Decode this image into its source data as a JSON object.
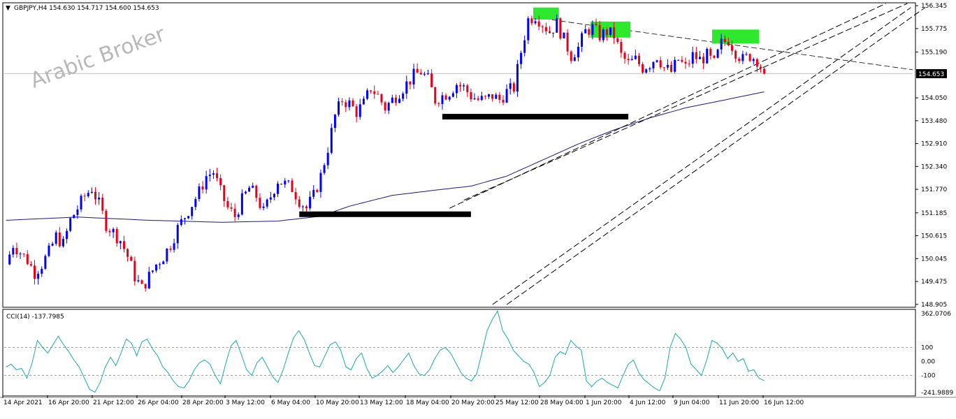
{
  "window": {
    "symbol_line": "GBPJPY,H4  154.630 154.717 154.600 154.653",
    "indicator_line": "CCI(14) -137.7985",
    "watermark": "Arabic Broker",
    "current_price_label": "154.653"
  },
  "colors": {
    "bull_candle": "#0000ff",
    "bear_candle": "#e8001b",
    "moving_average": "#1a1a7a",
    "cci_line": "#1fa8a8",
    "channel_lines": "#000000",
    "support_bars": "#000000",
    "top_markers": "#2ee82e",
    "grid_dotted": "#a0a0a0",
    "price_line": "#c0c0c0"
  },
  "chart_data": [
    {
      "type": "candlestick",
      "title": "GBPJPY,H4",
      "ohlc": {
        "open": 154.63,
        "high": 154.717,
        "low": 154.6,
        "close": 154.653
      },
      "ylim": [
        148.85,
        156.4
      ],
      "y_ticks": [
        "156.345",
        "155.775",
        "155.190",
        "154.653",
        "154.050",
        "153.480",
        "152.910",
        "152.340",
        "151.770",
        "151.185",
        "150.615",
        "150.045",
        "149.475",
        "148.905"
      ],
      "x_ticks": [
        "14 Apr 2021",
        "16 Apr 20:00",
        "21 Apr 12:00",
        "26 Apr 04:00",
        "28 Apr 20:00",
        "3 May 12:00",
        "6 May 04:00",
        "10 May 20:00",
        "13 May 12:00",
        "18 May 04:00",
        "20 May 20:00",
        "25 May 12:00",
        "28 May 04:00",
        "1 Jun 20:00",
        "4 Jun 12:00",
        "9 Jun 04:00",
        "11 Jun 20:00",
        "16 Jun 12:00"
      ],
      "price_path": [
        [
          0,
          149.9
        ],
        [
          2,
          150.4
        ],
        [
          4,
          150.2
        ],
        [
          6,
          150.0
        ],
        [
          8,
          149.7
        ],
        [
          10,
          149.9
        ],
        [
          12,
          150.2
        ],
        [
          14,
          150.6
        ],
        [
          16,
          150.4
        ],
        [
          18,
          151.0
        ],
        [
          20,
          151.3
        ],
        [
          22,
          151.6
        ],
        [
          24,
          151.8
        ],
        [
          26,
          151.4
        ],
        [
          28,
          150.9
        ],
        [
          30,
          150.7
        ],
        [
          32,
          150.5
        ],
        [
          34,
          150.1
        ],
        [
          36,
          149.6
        ],
        [
          38,
          149.3
        ],
        [
          40,
          149.6
        ],
        [
          42,
          149.9
        ],
        [
          44,
          150.1
        ],
        [
          46,
          150.4
        ],
        [
          48,
          150.8
        ],
        [
          50,
          151.1
        ],
        [
          52,
          151.4
        ],
        [
          54,
          151.7
        ],
        [
          56,
          152.1
        ],
        [
          58,
          152.2
        ],
        [
          60,
          151.7
        ],
        [
          62,
          151.3
        ],
        [
          64,
          151.1
        ],
        [
          66,
          151.5
        ],
        [
          68,
          151.8
        ],
        [
          70,
          151.6
        ],
        [
          72,
          151.2
        ],
        [
          74,
          151.6
        ],
        [
          76,
          152.0
        ],
        [
          78,
          151.9
        ],
        [
          80,
          151.8
        ],
        [
          82,
          151.5
        ],
        [
          84,
          151.3
        ],
        [
          86,
          151.6
        ],
        [
          88,
          152.1
        ],
        [
          90,
          152.8
        ],
        [
          92,
          153.6
        ],
        [
          94,
          154.0
        ],
        [
          96,
          153.9
        ],
        [
          98,
          153.7
        ],
        [
          100,
          153.9
        ],
        [
          102,
          154.3
        ],
        [
          104,
          154.1
        ],
        [
          106,
          153.8
        ],
        [
          108,
          154.0
        ],
        [
          110,
          154.2
        ],
        [
          112,
          154.4
        ],
        [
          114,
          154.6
        ],
        [
          116,
          154.7
        ],
        [
          118,
          154.5
        ],
        [
          120,
          154.0
        ],
        [
          122,
          154.1
        ],
        [
          124,
          154.2
        ],
        [
          126,
          154.4
        ],
        [
          128,
          154.3
        ],
        [
          130,
          154.1
        ],
        [
          132,
          154.0
        ],
        [
          134,
          154.0
        ],
        [
          136,
          154.1
        ],
        [
          138,
          154.0
        ],
        [
          140,
          154.2
        ],
        [
          142,
          154.3
        ],
        [
          144,
          155.2
        ],
        [
          146,
          156.0
        ],
        [
          148,
          156.1
        ],
        [
          150,
          155.9
        ],
        [
          152,
          155.7
        ],
        [
          154,
          155.9
        ],
        [
          156,
          155.5
        ],
        [
          158,
          155.1
        ],
        [
          160,
          155.3
        ],
        [
          162,
          155.7
        ],
        [
          164,
          155.8
        ],
        [
          166,
          155.6
        ],
        [
          168,
          155.7
        ],
        [
          170,
          155.6
        ],
        [
          172,
          155.1
        ],
        [
          174,
          154.9
        ],
        [
          176,
          155.0
        ],
        [
          178,
          154.8
        ],
        [
          180,
          154.9
        ],
        [
          182,
          155.1
        ],
        [
          184,
          154.8
        ],
        [
          186,
          154.7
        ],
        [
          188,
          155.0
        ],
        [
          190,
          154.8
        ],
        [
          192,
          155.1
        ],
        [
          194,
          155.0
        ],
        [
          196,
          155.1
        ],
        [
          198,
          154.9
        ],
        [
          200,
          155.4
        ],
        [
          202,
          155.5
        ],
        [
          204,
          155.2
        ],
        [
          206,
          155.0
        ],
        [
          208,
          155.1
        ],
        [
          210,
          155.0
        ],
        [
          212,
          154.65
        ]
      ],
      "moving_average_name": "",
      "ma_path": [
        [
          0,
          151.0
        ],
        [
          20,
          151.08
        ],
        [
          40,
          151.0
        ],
        [
          60,
          150.95
        ],
        [
          76,
          150.98
        ],
        [
          88,
          151.1
        ],
        [
          96,
          151.35
        ],
        [
          108,
          151.62
        ],
        [
          120,
          151.75
        ],
        [
          130,
          151.85
        ],
        [
          140,
          152.1
        ],
        [
          150,
          152.5
        ],
        [
          160,
          152.9
        ],
        [
          170,
          153.25
        ],
        [
          180,
          153.55
        ],
        [
          190,
          153.8
        ],
        [
          200,
          153.98
        ],
        [
          212,
          154.2
        ]
      ],
      "annotations": {
        "support_zones": [
          151.15,
          153.58
        ],
        "top_markers": 3,
        "resistance_line": [
          [
            148,
            156.05
          ],
          [
            253,
            154.75
          ]
        ]
      }
    },
    {
      "type": "line",
      "title": "CCI(14) -137.7985",
      "ylim": [
        -241.9889,
        362.0706
      ],
      "y_ticks": [
        "362.0706",
        "100",
        "0.00",
        "-100",
        "-241.9889"
      ],
      "levels": [
        100,
        -100
      ],
      "values": [
        -40,
        -20,
        -60,
        -50,
        -120,
        -10,
        150,
        100,
        60,
        120,
        180,
        120,
        70,
        10,
        -40,
        -120,
        -200,
        -220,
        -150,
        -40,
        30,
        -30,
        60,
        160,
        130,
        40,
        140,
        160,
        90,
        40,
        -40,
        -80,
        -140,
        -180,
        -190,
        -140,
        -60,
        -10,
        10,
        -20,
        -100,
        -160,
        -20,
        110,
        150,
        50,
        -60,
        -100,
        -10,
        30,
        -40,
        -110,
        -150,
        -60,
        60,
        170,
        220,
        160,
        60,
        -30,
        -40,
        40,
        120,
        140,
        80,
        -40,
        -60,
        20,
        60,
        -50,
        -120,
        -100,
        -70,
        -30,
        -80,
        -40,
        10,
        60,
        -30,
        -90,
        -100,
        -60,
        20,
        80,
        100,
        60,
        -10,
        -80,
        -120,
        -140,
        -90,
        60,
        220,
        300,
        360,
        220,
        160,
        80,
        40,
        0,
        -20,
        -80,
        -180,
        -150,
        -100,
        30,
        70,
        50,
        150,
        110,
        80,
        -140,
        -180,
        -140,
        -120,
        -150,
        -170,
        -190,
        -100,
        -20,
        10,
        -80,
        -130,
        -160,
        -190,
        -210,
        -120,
        100,
        200,
        160,
        100,
        -20,
        -60,
        -100,
        10,
        150,
        130,
        90,
        20,
        60,
        0,
        20,
        -70,
        -60,
        -120,
        -137.8
      ]
    }
  ]
}
